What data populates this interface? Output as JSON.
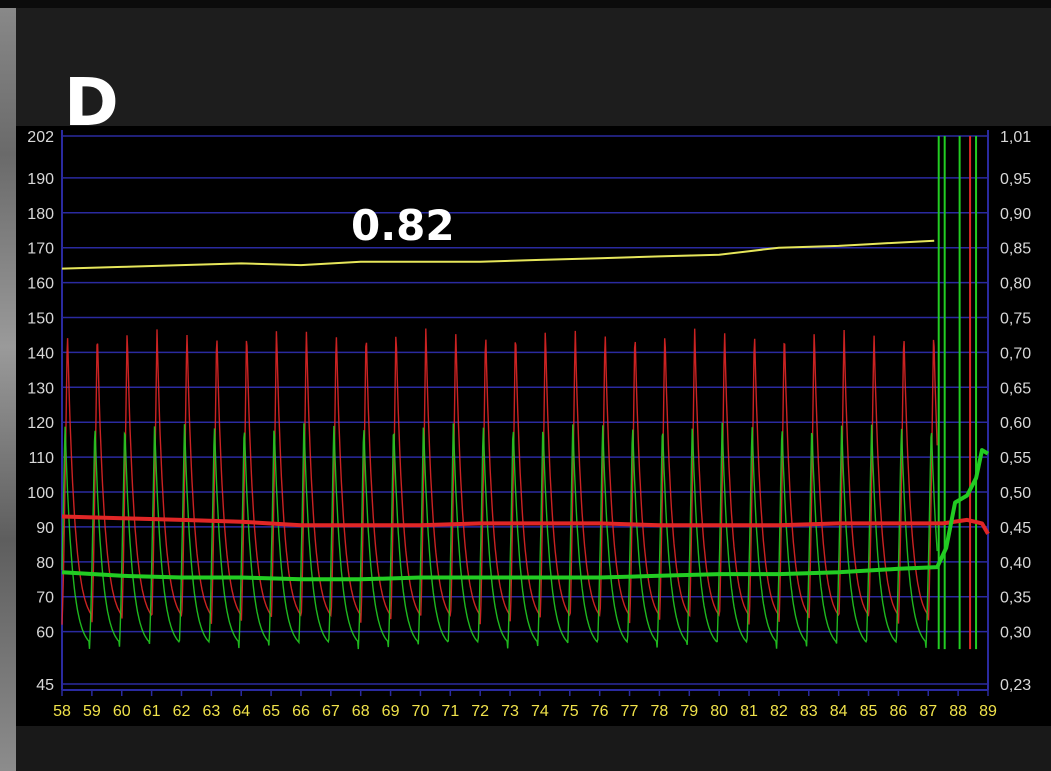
{
  "panel_label": "D",
  "annotation": "0.82",
  "colors": {
    "background": "#000000",
    "grid": "#2a2aa0",
    "axis_text": "#d8d8d8",
    "yellow_trace": "#e6e65a",
    "red": "#e02626",
    "green": "#22cc22"
  },
  "chart_data": {
    "type": "line",
    "xlim": [
      58,
      89
    ],
    "x_ticks": [
      "58",
      "59",
      "60",
      "61",
      "62",
      "63",
      "64",
      "65",
      "66",
      "67",
      "68",
      "69",
      "70",
      "71",
      "72",
      "73",
      "74",
      "75",
      "76",
      "77",
      "78",
      "79",
      "80",
      "81",
      "82",
      "83",
      "84",
      "85",
      "86",
      "87",
      "88",
      "89"
    ],
    "left_axis": {
      "range": [
        45,
        202
      ],
      "ticks": [
        {
          "value": 202,
          "label": "202"
        },
        {
          "value": 190,
          "label": "190"
        },
        {
          "value": 180,
          "label": "180"
        },
        {
          "value": 170,
          "label": "170"
        },
        {
          "value": 160,
          "label": "160"
        },
        {
          "value": 150,
          "label": "150"
        },
        {
          "value": 140,
          "label": "140"
        },
        {
          "value": 130,
          "label": "130"
        },
        {
          "value": 120,
          "label": "120"
        },
        {
          "value": 110,
          "label": "110"
        },
        {
          "value": 100,
          "label": "100"
        },
        {
          "value": 90,
          "label": "90"
        },
        {
          "value": 80,
          "label": "80"
        },
        {
          "value": 70,
          "label": "70"
        },
        {
          "value": 60,
          "label": "60"
        },
        {
          "value": 45,
          "label": "45"
        }
      ]
    },
    "right_axis": {
      "range": [
        0.23,
        1.01
      ],
      "ticks": [
        "1,01",
        "0,95",
        "0,90",
        "0,85",
        "0,80",
        "0,75",
        "0,70",
        "0,65",
        "0,60",
        "0,55",
        "0,50",
        "0,45",
        "0,40",
        "0,35",
        "0,30",
        "0,23"
      ]
    },
    "grid": true,
    "series": [
      {
        "key": "yellow_trace",
        "kind": "trend",
        "points": [
          [
            58,
            164
          ],
          [
            60,
            164.5
          ],
          [
            62,
            165
          ],
          [
            64,
            165.5
          ],
          [
            66,
            165
          ],
          [
            68,
            166
          ],
          [
            70,
            166
          ],
          [
            72,
            166
          ],
          [
            74,
            166.5
          ],
          [
            76,
            167
          ],
          [
            78,
            167.5
          ],
          [
            80,
            168
          ],
          [
            81,
            169
          ],
          [
            82,
            170
          ],
          [
            84,
            170.5
          ],
          [
            85,
            171
          ],
          [
            87.2,
            172
          ]
        ]
      },
      {
        "key": "red_mean",
        "kind": "trend",
        "points": [
          [
            58,
            93
          ],
          [
            60,
            92.5
          ],
          [
            62,
            92
          ],
          [
            64,
            91.5
          ],
          [
            66,
            90.5
          ],
          [
            68,
            90.5
          ],
          [
            70,
            90.5
          ],
          [
            72,
            91
          ],
          [
            74,
            91
          ],
          [
            76,
            91
          ],
          [
            78,
            90.5
          ],
          [
            80,
            90.5
          ],
          [
            82,
            90.5
          ],
          [
            84,
            91
          ],
          [
            86,
            91
          ],
          [
            87.5,
            91
          ],
          [
            88.3,
            92
          ],
          [
            88.8,
            91
          ],
          [
            89,
            88
          ]
        ]
      },
      {
        "key": "green_mean",
        "kind": "trend",
        "points": [
          [
            58,
            77
          ],
          [
            60,
            76
          ],
          [
            62,
            75.5
          ],
          [
            64,
            75.5
          ],
          [
            66,
            75
          ],
          [
            68,
            75
          ],
          [
            70,
            75.5
          ],
          [
            72,
            75.5
          ],
          [
            74,
            75.5
          ],
          [
            76,
            75.5
          ],
          [
            78,
            76
          ],
          [
            80,
            76.5
          ],
          [
            82,
            76.5
          ],
          [
            84,
            77
          ],
          [
            86,
            78
          ],
          [
            87.3,
            78.5
          ],
          [
            87.6,
            84
          ],
          [
            87.9,
            97
          ],
          [
            88.3,
            99
          ],
          [
            88.6,
            104
          ],
          [
            88.8,
            112
          ],
          [
            89,
            111
          ]
        ]
      },
      {
        "key": "red_wave",
        "kind": "pulsatile",
        "peak": 147,
        "trough": 62,
        "beats_per_unit": 1.0
      },
      {
        "key": "green_wave",
        "kind": "pulsatile",
        "peak": 120,
        "trough": 55,
        "beats_per_unit": 1.0
      }
    ]
  }
}
